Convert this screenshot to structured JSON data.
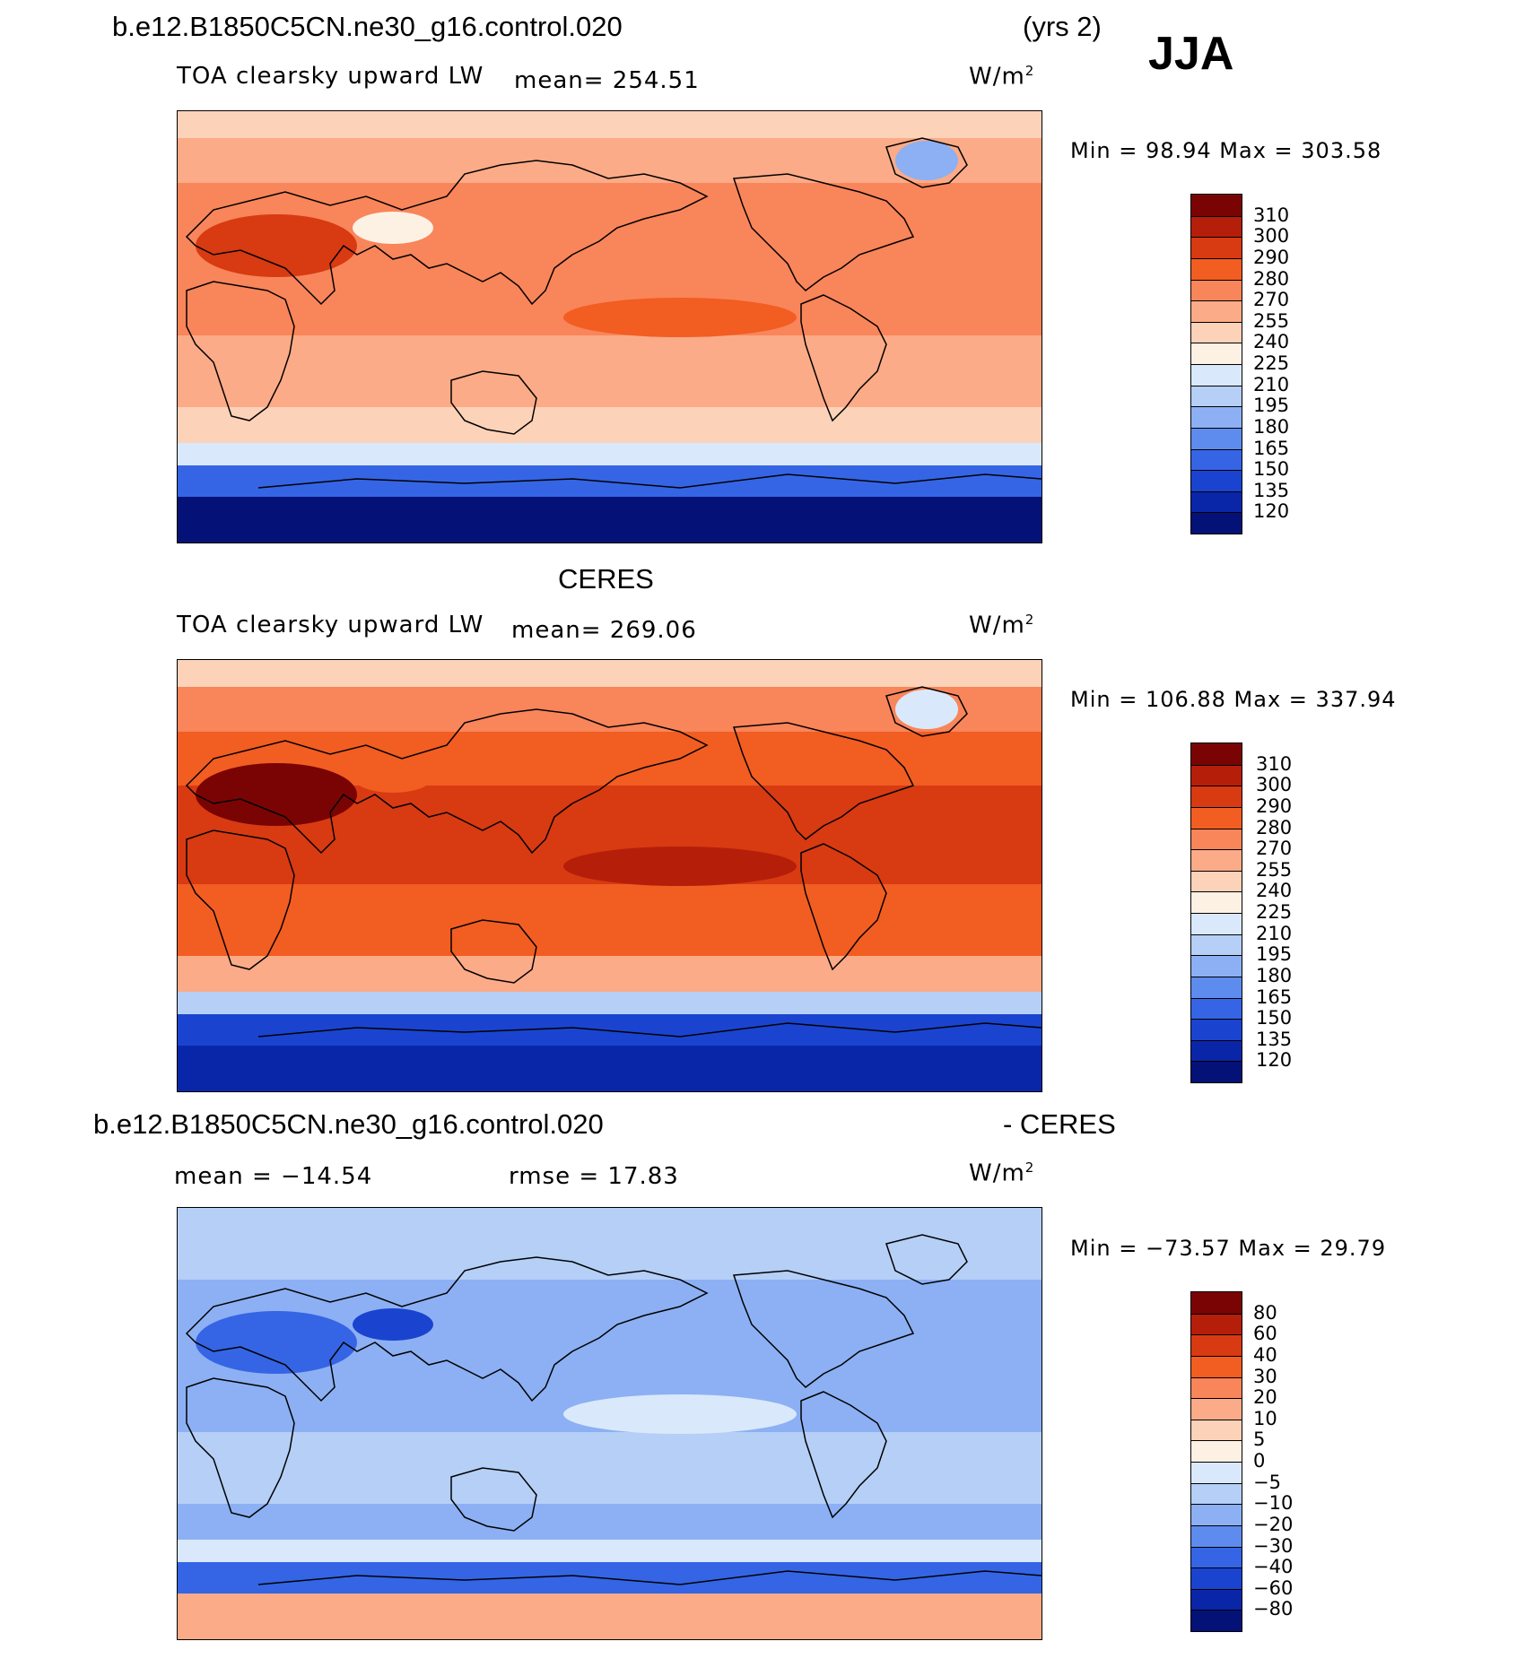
{
  "header": {
    "case_name": "b.e12.B1850C5CN.ne30_g16.control.020",
    "years": "(yrs 2)",
    "season": "JJA"
  },
  "panels": [
    {
      "title": "",
      "variable": "TOA clearsky upward LW",
      "stat": "mean= 254.51",
      "units": "W/m",
      "units_sup": "2",
      "minmax": "Min =   98.94 Max = 303.58",
      "legend": {
        "labels": [
          "310",
          "300",
          "290",
          "280",
          "270",
          "255",
          "240",
          "225",
          "210",
          "195",
          "180",
          "165",
          "150",
          "135",
          "120"
        ],
        "colors": [
          "#7a0403",
          "#b51f0a",
          "#d83a12",
          "#f25d22",
          "#f9855a",
          "#fbab87",
          "#fcd2b9",
          "#fdf1e4",
          "#d9e9fb",
          "#b5cff7",
          "#8cb0f3",
          "#5e8bee",
          "#3565e5",
          "#1a44cf",
          "#0a26a8",
          "#041277"
        ]
      },
      "fields": {
        "ocean": "#fbab87",
        "tropics": "#f9855a",
        "warm_pool": "#f25d22",
        "subtropics_n": "#f9855a",
        "midlat_n": "#fbab87",
        "arctic": "#fcd2b9",
        "southern_mid": "#fcd2b9",
        "southern_band": "#d9e9fb",
        "southern_ice": "#3565e5",
        "antarctica": "#041277",
        "desert": "#d83a12",
        "tibet": "#fdf1e4",
        "greenland": "#8cb0f3"
      }
    },
    {
      "title": "CERES",
      "variable": "TOA clearsky upward LW",
      "stat": "mean= 269.06",
      "units": "W/m",
      "units_sup": "2",
      "minmax": "Min = 106.88 Max = 337.94",
      "legend": {
        "labels": [
          "310",
          "300",
          "290",
          "280",
          "270",
          "255",
          "240",
          "225",
          "210",
          "195",
          "180",
          "165",
          "150",
          "135",
          "120"
        ],
        "colors": [
          "#7a0403",
          "#b51f0a",
          "#d83a12",
          "#f25d22",
          "#f9855a",
          "#fbab87",
          "#fcd2b9",
          "#fdf1e4",
          "#d9e9fb",
          "#b5cff7",
          "#8cb0f3",
          "#5e8bee",
          "#3565e5",
          "#1a44cf",
          "#0a26a8",
          "#041277"
        ]
      },
      "fields": {
        "ocean": "#f25d22",
        "tropics": "#d83a12",
        "warm_pool": "#b51f0a",
        "subtropics_n": "#f25d22",
        "midlat_n": "#f9855a",
        "arctic": "#fcd2b9",
        "southern_mid": "#fbab87",
        "southern_band": "#b5cff7",
        "southern_ice": "#1a44cf",
        "antarctica": "#0a26a8",
        "desert": "#7a0403",
        "tibet": "#f25d22",
        "greenland": "#d9e9fb"
      }
    },
    {
      "title_left": "b.e12.B1850C5CN.ne30_g16.control.020",
      "title_right": "- CERES",
      "stat_mean": "mean = −14.54",
      "stat_rmse": "rmse =   17.83",
      "units": "W/m",
      "units_sup": "2",
      "minmax": "Min = −73.57 Max =   29.79",
      "legend": {
        "labels": [
          "80",
          "60",
          "40",
          "30",
          "20",
          "10",
          "5",
          "0",
          "−5",
          "−10",
          "−20",
          "−30",
          "−40",
          "−60",
          "−80"
        ],
        "colors": [
          "#7a0403",
          "#b51f0a",
          "#d83a12",
          "#f25d22",
          "#f9855a",
          "#fbab87",
          "#fcd2b9",
          "#fdf1e4",
          "#d9e9fb",
          "#b5cff7",
          "#8cb0f3",
          "#5e8bee",
          "#3565e5",
          "#1a44cf",
          "#0a26a8",
          "#041277"
        ]
      },
      "fields": {
        "ocean": "#b5cff7",
        "tropics": "#8cb0f3",
        "warm_pool": "#d9e9fb",
        "subtropics_n": "#8cb0f3",
        "midlat_n": "#b5cff7",
        "arctic": "#b5cff7",
        "southern_mid": "#8cb0f3",
        "southern_band": "#d9e9fb",
        "southern_ice": "#3565e5",
        "antarctica": "#fbab87",
        "desert": "#3565e5",
        "tibet": "#1a44cf",
        "greenland": "#b5cff7"
      }
    }
  ]
}
